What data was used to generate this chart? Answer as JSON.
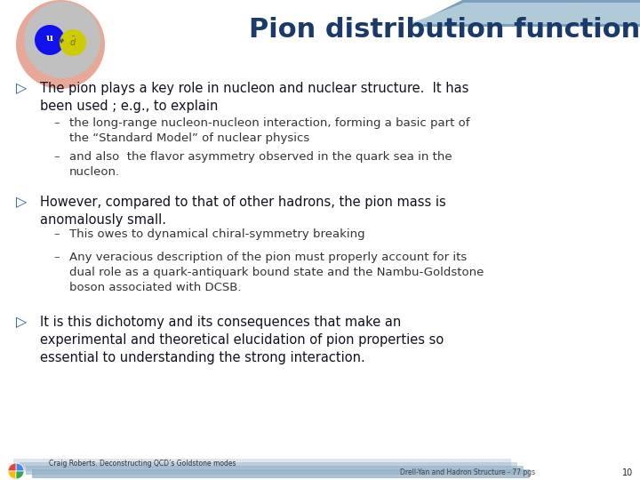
{
  "title": "Pion distribution function",
  "title_color": "#1a3a6b",
  "title_fontsize": 22,
  "bg_color": "#ffffff",
  "bullet1_main": "The pion plays a key role in nucleon and nuclear structure.  It has\nbeen used ; e.g., to explain",
  "bullet1_subs": [
    "the long-range nucleon-nucleon interaction, forming a basic part of\nthe “Standard Model” of nuclear physics",
    "and also  the flavor asymmetry observed in the quark sea in the\nnucleon."
  ],
  "bullet2_main": "However, compared to that of other hadrons, the pion mass is\nanomalously small.",
  "bullet2_subs": [
    "This owes to dynamical chiral-symmetry breaking",
    "Any veracious description of the pion must properly account for its\ndual role as a quark-antiquark bound state and the Nambu-Goldstone\nboson associated with DCSB."
  ],
  "bullet3_main": "It is this dichotomy and its consequences that make an\nexperimental and theoretical elucidation of pion properties so\nessential to understanding the strong interaction.",
  "footer_left": "Craig Roberts. Deconstructing QCD’s Goldstone modes",
  "footer_right": "Drell-Yan and Hadron Structure - 77 pgs",
  "footer_page": "10",
  "header_blue": "#7a9fc0",
  "header_light": "#b0cad8",
  "footer_blue": "#90afc5",
  "bullet_arrow_color": "#2a5ea0",
  "main_text_color": "#111122",
  "sub_text_color": "#333333",
  "main_fs": 10.5,
  "sub_fs": 9.5
}
